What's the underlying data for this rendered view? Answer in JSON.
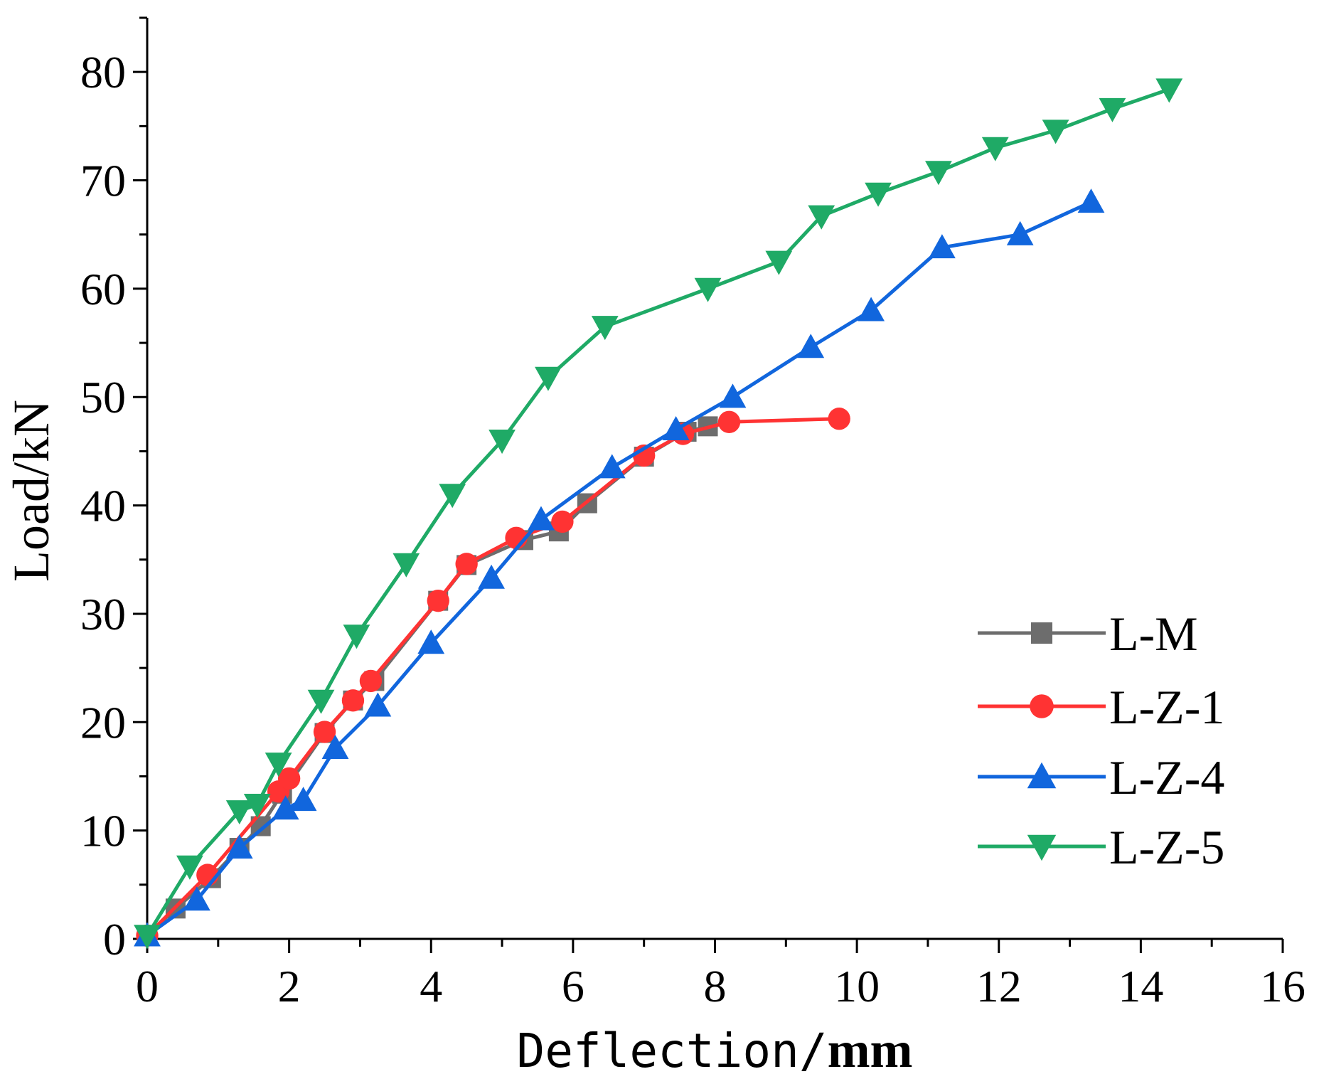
{
  "chart_data": {
    "type": "line",
    "title": "",
    "xlabel": "Deflection/",
    "xlabel_unit": "mm",
    "ylabel": "Load/kN",
    "xlim": [
      0,
      16
    ],
    "ylim": [
      0,
      85
    ],
    "x_ticks": [
      "0",
      "2",
      "4",
      "6",
      "8",
      "10",
      "12",
      "14",
      "16"
    ],
    "y_ticks": [
      "0",
      "10",
      "20",
      "30",
      "40",
      "50",
      "60",
      "70",
      "80"
    ],
    "legend_position": "bottom-right",
    "grid": false,
    "series": [
      {
        "name": "L-M",
        "color": "#6d6d6d",
        "marker": "square",
        "points": [
          [
            0,
            0.3
          ],
          [
            0.4,
            2.8
          ],
          [
            0.9,
            5.6
          ],
          [
            1.3,
            8.4
          ],
          [
            1.6,
            10.4
          ],
          [
            1.9,
            13.4
          ],
          [
            2.5,
            19.0
          ],
          [
            2.9,
            22.0
          ],
          [
            3.2,
            23.8
          ],
          [
            4.1,
            31.2
          ],
          [
            4.5,
            34.5
          ],
          [
            5.3,
            36.8
          ],
          [
            5.8,
            37.6
          ],
          [
            6.2,
            40.2
          ],
          [
            7.0,
            44.5
          ],
          [
            7.6,
            46.8
          ],
          [
            7.9,
            47.3
          ]
        ]
      },
      {
        "name": "L-Z-1",
        "color": "#ff3333",
        "marker": "circle",
        "points": [
          [
            0,
            0.3
          ],
          [
            0.85,
            5.9
          ],
          [
            1.85,
            13.6
          ],
          [
            2.0,
            14.8
          ],
          [
            2.5,
            19.1
          ],
          [
            2.9,
            22.0
          ],
          [
            3.15,
            23.8
          ],
          [
            4.1,
            31.2
          ],
          [
            4.5,
            34.6
          ],
          [
            5.2,
            37.0
          ],
          [
            5.85,
            38.5
          ],
          [
            7.0,
            44.6
          ],
          [
            7.55,
            46.6
          ],
          [
            8.2,
            47.7
          ],
          [
            9.75,
            48.0
          ]
        ]
      },
      {
        "name": "L-Z-4",
        "color": "#1166dd",
        "marker": "triangle-up",
        "points": [
          [
            0,
            0.3
          ],
          [
            0.7,
            3.6
          ],
          [
            1.3,
            8.4
          ],
          [
            1.95,
            12.0
          ],
          [
            2.2,
            12.8
          ],
          [
            2.65,
            17.6
          ],
          [
            3.25,
            21.5
          ],
          [
            4.0,
            27.3
          ],
          [
            4.85,
            33.3
          ],
          [
            5.55,
            38.7
          ],
          [
            6.55,
            43.5
          ],
          [
            7.45,
            47.0
          ],
          [
            8.25,
            50.0
          ],
          [
            9.35,
            54.6
          ],
          [
            10.2,
            58.0
          ],
          [
            11.2,
            63.8
          ],
          [
            12.3,
            65.0
          ],
          [
            13.3,
            68.0
          ]
        ]
      },
      {
        "name": "L-Z-5",
        "color": "#1faa66",
        "marker": "triangle-down",
        "points": [
          [
            0,
            0.3
          ],
          [
            0.6,
            6.7
          ],
          [
            1.3,
            11.8
          ],
          [
            1.55,
            12.4
          ],
          [
            1.85,
            16.2
          ],
          [
            2.45,
            22.0
          ],
          [
            2.95,
            28.0
          ],
          [
            3.65,
            34.6
          ],
          [
            4.3,
            41.0
          ],
          [
            5.0,
            46.0
          ],
          [
            5.65,
            51.8
          ],
          [
            6.45,
            56.5
          ],
          [
            7.9,
            60.0
          ],
          [
            8.9,
            62.5
          ],
          [
            9.5,
            66.7
          ],
          [
            10.3,
            68.8
          ],
          [
            11.15,
            70.8
          ],
          [
            11.95,
            73.0
          ],
          [
            12.8,
            74.6
          ],
          [
            13.6,
            76.6
          ],
          [
            14.4,
            78.4
          ]
        ]
      }
    ]
  }
}
